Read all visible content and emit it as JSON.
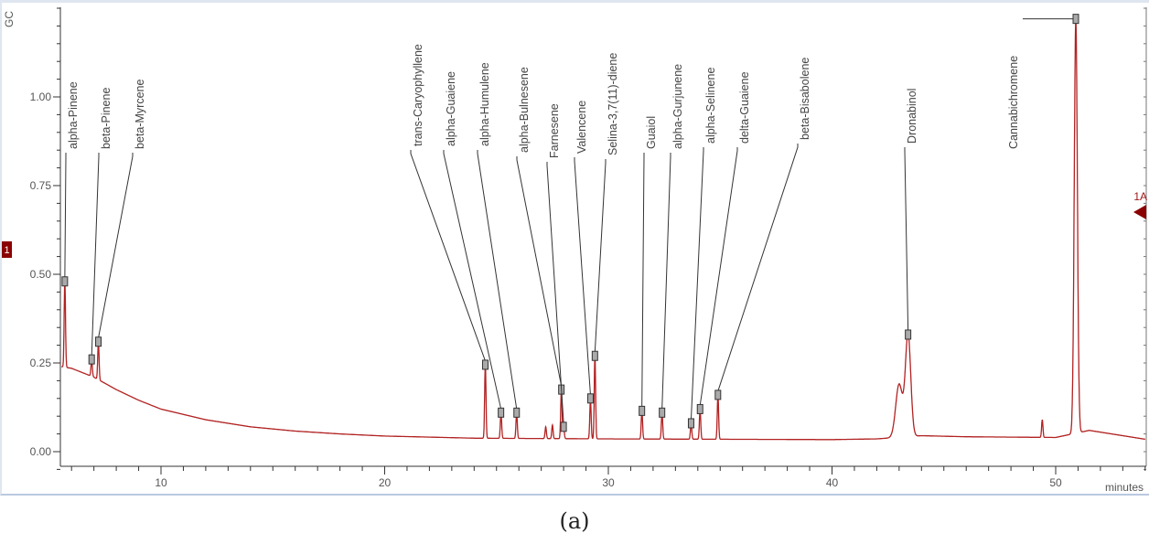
{
  "chart_data": {
    "type": "line",
    "title": "",
    "subtitle": "",
    "caption": "(a)",
    "xlabel": "minutes",
    "ylabel": "GC",
    "xlim": [
      5.5,
      54
    ],
    "ylim": [
      -0.05,
      1.25
    ],
    "x_ticks": [
      10,
      20,
      30,
      40,
      50
    ],
    "y_ticks": [
      0.0,
      0.25,
      0.5,
      0.75,
      1.0
    ],
    "y_tick_labels": [
      "0.00",
      "0.25",
      "0.50",
      "0.75",
      "1.00"
    ],
    "grid": false,
    "legend": null,
    "series": [
      {
        "name": "1A",
        "color": "#b22222"
      }
    ],
    "channel_marker_left": "1",
    "channel_marker_right": "1A",
    "baseline": [
      [
        5.5,
        0.24
      ],
      [
        6.0,
        0.235
      ],
      [
        7.0,
        0.21
      ],
      [
        8.0,
        0.175
      ],
      [
        9.0,
        0.145
      ],
      [
        10.0,
        0.12
      ],
      [
        12.0,
        0.09
      ],
      [
        14.0,
        0.07
      ],
      [
        16.0,
        0.058
      ],
      [
        18.0,
        0.05
      ],
      [
        20.0,
        0.044
      ],
      [
        24.0,
        0.038
      ],
      [
        30.0,
        0.036
      ],
      [
        35.0,
        0.035
      ],
      [
        40.0,
        0.034
      ],
      [
        42.0,
        0.036
      ],
      [
        44.0,
        0.045
      ],
      [
        46.0,
        0.042
      ],
      [
        50.0,
        0.04
      ],
      [
        51.5,
        0.06
      ],
      [
        53.0,
        0.045
      ],
      [
        54.0,
        0.035
      ]
    ],
    "peaks": [
      {
        "name": "alpha-Pinene",
        "rt": 5.7,
        "height": 0.48
      },
      {
        "name": "beta-Pinene",
        "rt": 6.9,
        "height": 0.26
      },
      {
        "name": "beta-Myrcene",
        "rt": 7.2,
        "height": 0.31
      },
      {
        "name": "trans-Caryophyllene",
        "rt": 24.5,
        "height": 0.245
      },
      {
        "name": "alpha-Guaiene",
        "rt": 25.2,
        "height": 0.11
      },
      {
        "name": "alpha-Humulene",
        "rt": 25.9,
        "height": 0.11
      },
      {
        "name": "alpha-Bulnesene",
        "rt": 27.9,
        "height": 0.175
      },
      {
        "name": "Farnesene",
        "rt": 28.0,
        "height": 0.07
      },
      {
        "name": "Valencene",
        "rt": 29.2,
        "height": 0.15
      },
      {
        "name": "Selina-3,7(11)-diene",
        "rt": 29.4,
        "height": 0.27
      },
      {
        "name": "Guaiol",
        "rt": 31.5,
        "height": 0.115
      },
      {
        "name": "alpha-Gurjunene",
        "rt": 32.4,
        "height": 0.11
      },
      {
        "name": "alpha-Selinene",
        "rt": 33.7,
        "height": 0.08
      },
      {
        "name": "delta-Guaiene",
        "rt": 34.1,
        "height": 0.12
      },
      {
        "name": "beta-Bisabolene",
        "rt": 34.9,
        "height": 0.16
      },
      {
        "name": "Dronabinol",
        "rt": 43.4,
        "height": 0.33
      },
      {
        "name": "Cannabichromene",
        "rt": 50.9,
        "height": 1.22
      }
    ],
    "minor_peaks": [
      {
        "rt": 8.6,
        "height": 0.13
      },
      {
        "rt": 27.2,
        "height": 0.07
      },
      {
        "rt": 27.5,
        "height": 0.075
      },
      {
        "rt": 43.0,
        "height": 0.19
      },
      {
        "rt": 49.4,
        "height": 0.09
      }
    ]
  }
}
